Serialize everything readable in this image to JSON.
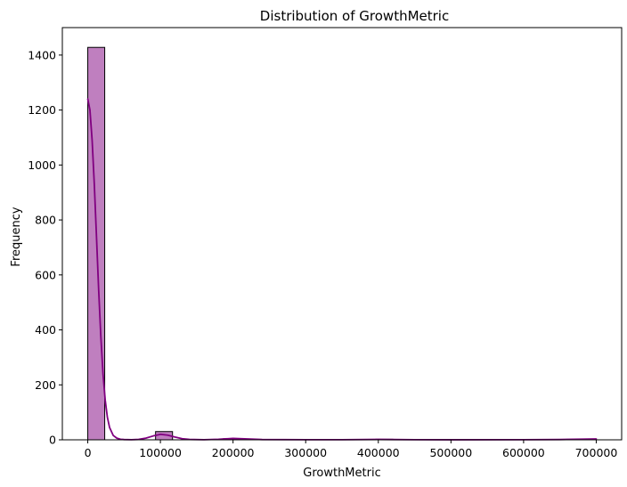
{
  "chart_data": {
    "type": "bar",
    "title": "Distribution of GrowthMetric",
    "xlabel": "GrowthMetric",
    "ylabel": "Frequency",
    "xlim": [
      -35000,
      735000
    ],
    "ylim": [
      0,
      1500
    ],
    "xticks": [
      0,
      100000,
      200000,
      300000,
      400000,
      500000,
      600000,
      700000
    ],
    "yticks": [
      0,
      200,
      400,
      600,
      800,
      1000,
      1200,
      1400
    ],
    "bin_width": 23333.33,
    "bins": [
      {
        "start": 0,
        "end": 23333.33,
        "count": 1428
      },
      {
        "start": 93333.33,
        "end": 116666.67,
        "count": 30
      },
      {
        "start": 186666.67,
        "end": 210000,
        "count": 4
      },
      {
        "start": 396666.67,
        "end": 420000,
        "count": 2
      },
      {
        "start": 676666.67,
        "end": 700000,
        "count": 3
      }
    ],
    "kde": {
      "x": [
        0,
        3000,
        6000,
        9000,
        12000,
        15000,
        18000,
        21000,
        24000,
        27000,
        30000,
        35000,
        40000,
        45000,
        50000,
        60000,
        70000,
        80000,
        90000,
        100000,
        110000,
        120000,
        130000,
        140000,
        160000,
        180000,
        200000,
        220000,
        240000,
        300000,
        350000,
        400000,
        420000,
        450000,
        500000,
        600000,
        650000,
        680000,
        700000
      ],
      "y": [
        1240,
        1200,
        1090,
        930,
        740,
        545,
        375,
        240,
        145,
        82,
        45,
        16,
        6,
        2,
        1,
        0.5,
        1.5,
        6,
        14,
        20,
        17,
        10,
        4,
        1.5,
        0.5,
        2,
        5,
        3,
        1,
        0.3,
        0.5,
        1.5,
        1,
        0.3,
        0.2,
        0.3,
        1,
        2.5,
        3
      ]
    },
    "bar_fill": "#bf7fbf",
    "bar_edge": "#000000",
    "kde_color": "#800080",
    "grid": false,
    "legend": "none"
  }
}
